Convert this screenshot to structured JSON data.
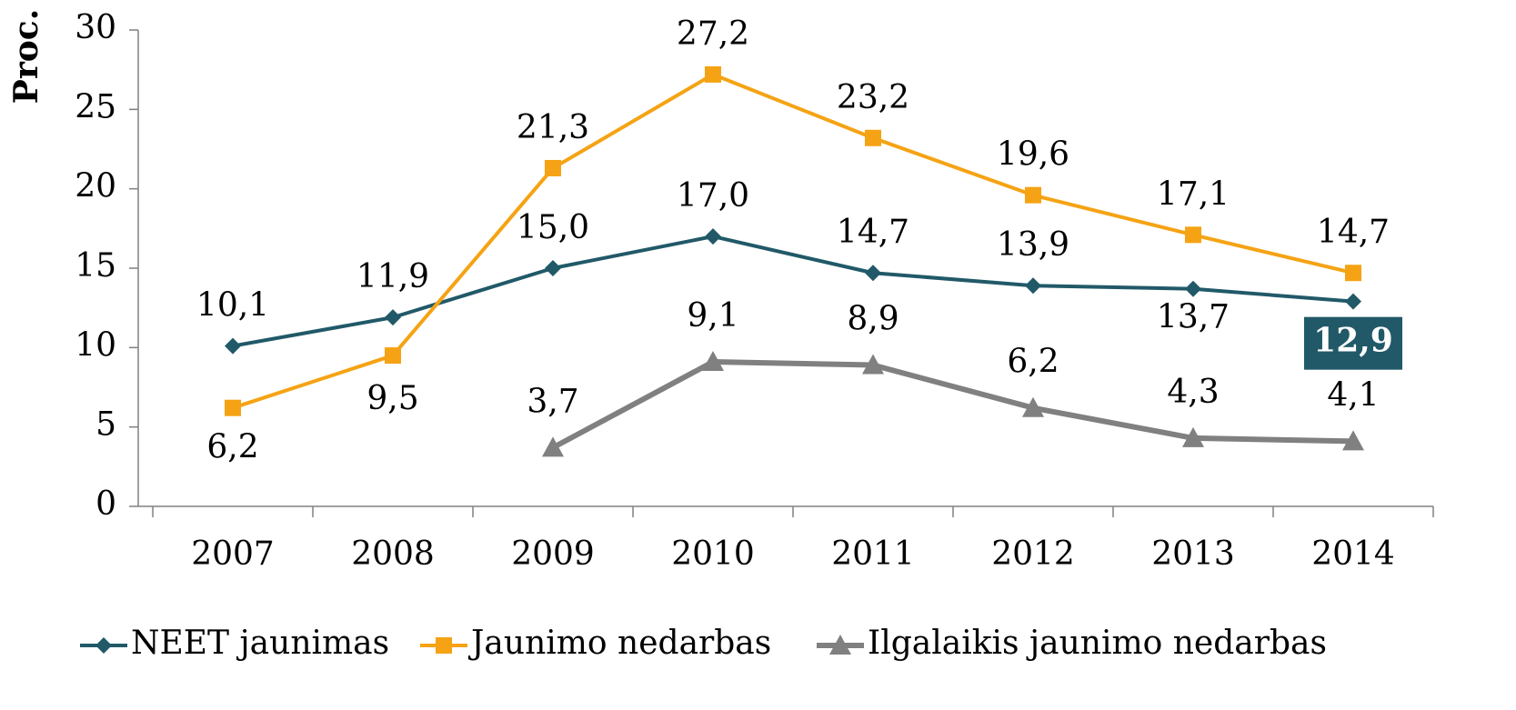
{
  "chart_data": {
    "type": "line",
    "y_label": "Proc.",
    "categories": [
      "2007",
      "2008",
      "2009",
      "2010",
      "2011",
      "2012",
      "2013",
      "2014"
    ],
    "series": [
      {
        "name": "NEET jaunimas",
        "color": "#215968",
        "marker": "diamond",
        "values": [
          10.1,
          11.9,
          15.0,
          17.0,
          14.7,
          13.9,
          13.7,
          12.9
        ],
        "value_labels": [
          "10,1",
          "11,9",
          "15,0",
          "17,0",
          "14,7",
          "13,9",
          "13,7",
          "12,9"
        ]
      },
      {
        "name": "Jaunimo nedarbas",
        "color": "#f5a314",
        "marker": "square",
        "values": [
          6.2,
          9.5,
          21.3,
          27.2,
          23.2,
          19.6,
          17.1,
          14.7
        ],
        "value_labels": [
          "6,2",
          "9,5",
          "21,3",
          "27,2",
          "23,2",
          "19,6",
          "17,1",
          "14,7"
        ]
      },
      {
        "name": "Ilgalaikis jaunimo nedarbas",
        "color": "#808080",
        "marker": "triangle",
        "values": [
          null,
          null,
          3.7,
          9.1,
          8.9,
          6.2,
          4.3,
          4.1
        ],
        "value_labels": [
          null,
          null,
          "3,7",
          "9,1",
          "8,9",
          "6,2",
          "4,3",
          "4,1"
        ]
      }
    ],
    "ylim": [
      0,
      30
    ],
    "yticks": [
      0,
      5,
      10,
      15,
      20,
      25,
      30
    ],
    "grid": false,
    "legend": "bottom"
  }
}
